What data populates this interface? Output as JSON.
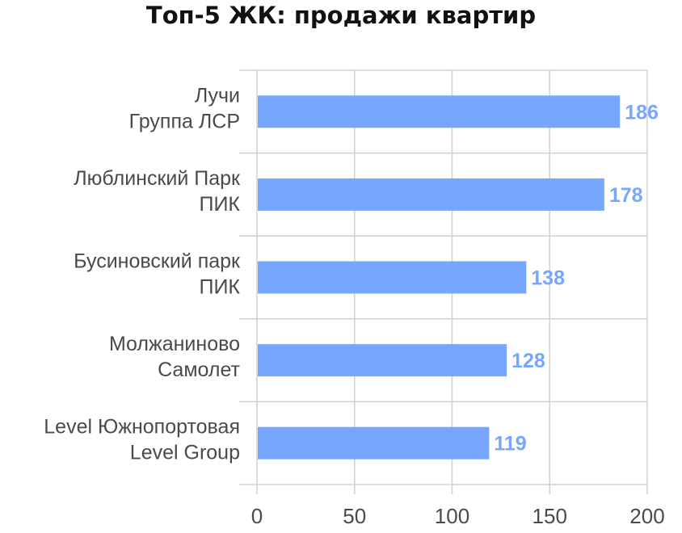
{
  "chart_data": {
    "type": "bar",
    "orientation": "horizontal",
    "title": "Топ-5 ЖК: продажи квартир",
    "categories": [
      [
        "Лучи",
        "Группа ЛСР"
      ],
      [
        "Люблинский Парк",
        "ПИК"
      ],
      [
        "Бусиновский парк",
        "ПИК"
      ],
      [
        "Молжаниново",
        "Самолет"
      ],
      [
        "Level Южнопортовая",
        "Level Group"
      ]
    ],
    "values": [
      186,
      178,
      138,
      128,
      119
    ],
    "data_labels": [
      "186",
      "178",
      "138",
      "128",
      "119"
    ],
    "xlim": [
      0,
      200
    ],
    "x_ticks": [
      0,
      50,
      100,
      150,
      200
    ],
    "x_tick_labels": [
      "0",
      "50",
      "100",
      "150",
      "200"
    ],
    "grid": true,
    "legend": "none",
    "bar_color": "#77a6ff",
    "data_label_color": "#77a6ff"
  }
}
